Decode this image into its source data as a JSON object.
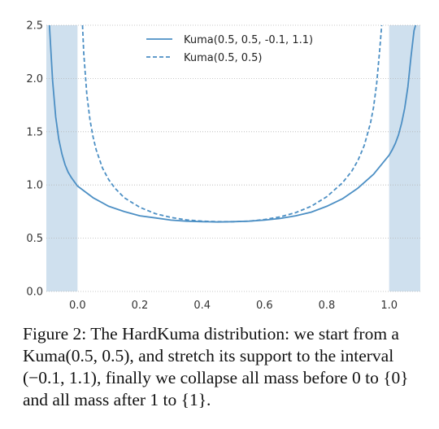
{
  "chart_data": {
    "type": "line",
    "xlim": [
      -0.1,
      1.1
    ],
    "ylim": [
      0.0,
      2.5
    ],
    "xticks": [
      "0.0",
      "0.2",
      "0.4",
      "0.6",
      "0.8",
      "1.0"
    ],
    "yticks": [
      "0.0",
      "0.5",
      "1.0",
      "1.5",
      "2.0",
      "2.5"
    ],
    "grid": "dotted horizontal",
    "legend_position": "top-center",
    "series": [
      {
        "name": "Kuma(0.5, 0.5, -0.1, 1.1)",
        "style": "solid",
        "color": "#4c8fc4",
        "x": [
          -0.09,
          -0.08,
          -0.07,
          -0.06,
          -0.05,
          -0.04,
          -0.03,
          -0.02,
          -0.01,
          0.0,
          0.05,
          0.1,
          0.15,
          0.2,
          0.25,
          0.3,
          0.35,
          0.4,
          0.45,
          0.5,
          0.55,
          0.6,
          0.65,
          0.7,
          0.75,
          0.8,
          0.85,
          0.9,
          0.95,
          1.0,
          1.01,
          1.02,
          1.03,
          1.04,
          1.05,
          1.06,
          1.07,
          1.08,
          1.085
        ],
        "y": [
          2.5,
          1.98,
          1.64,
          1.43,
          1.29,
          1.19,
          1.12,
          1.07,
          1.03,
          0.99,
          0.88,
          0.8,
          0.75,
          0.71,
          0.69,
          0.67,
          0.66,
          0.655,
          0.652,
          0.655,
          0.66,
          0.67,
          0.685,
          0.71,
          0.745,
          0.8,
          0.87,
          0.97,
          1.1,
          1.28,
          1.33,
          1.39,
          1.47,
          1.58,
          1.72,
          1.92,
          2.2,
          2.45,
          2.5
        ]
      },
      {
        "name": "Kuma(0.5, 0.5)",
        "style": "dashed",
        "color": "#4c8fc4",
        "x": [
          0.016,
          0.02,
          0.03,
          0.04,
          0.05,
          0.06,
          0.08,
          0.1,
          0.12,
          0.15,
          0.2,
          0.25,
          0.3,
          0.35,
          0.4,
          0.45,
          0.5,
          0.55,
          0.6,
          0.65,
          0.7,
          0.75,
          0.8,
          0.85,
          0.88,
          0.9,
          0.92,
          0.94,
          0.95,
          0.96,
          0.97,
          0.976
        ],
        "y": [
          2.5,
          2.24,
          1.85,
          1.61,
          1.45,
          1.33,
          1.16,
          1.05,
          0.97,
          0.88,
          0.79,
          0.73,
          0.695,
          0.672,
          0.66,
          0.655,
          0.655,
          0.66,
          0.675,
          0.7,
          0.74,
          0.8,
          0.89,
          1.02,
          1.13,
          1.23,
          1.37,
          1.58,
          1.73,
          1.95,
          2.28,
          2.5
        ]
      }
    ],
    "shaded_regions": [
      {
        "x": [
          -0.1,
          0.0
        ],
        "color": "#cfe0ee"
      },
      {
        "x": [
          1.0,
          1.1
        ],
        "color": "#cfe0ee"
      }
    ]
  },
  "caption": {
    "label": "Figure 2:",
    "text": "The HardKuma distribution: we start from a Kuma(0.5, 0.5), and stretch its support to the interval (−0.1, 1.1), finally we collapse all mass before 0 to {0} and all mass after 1 to {1}."
  }
}
